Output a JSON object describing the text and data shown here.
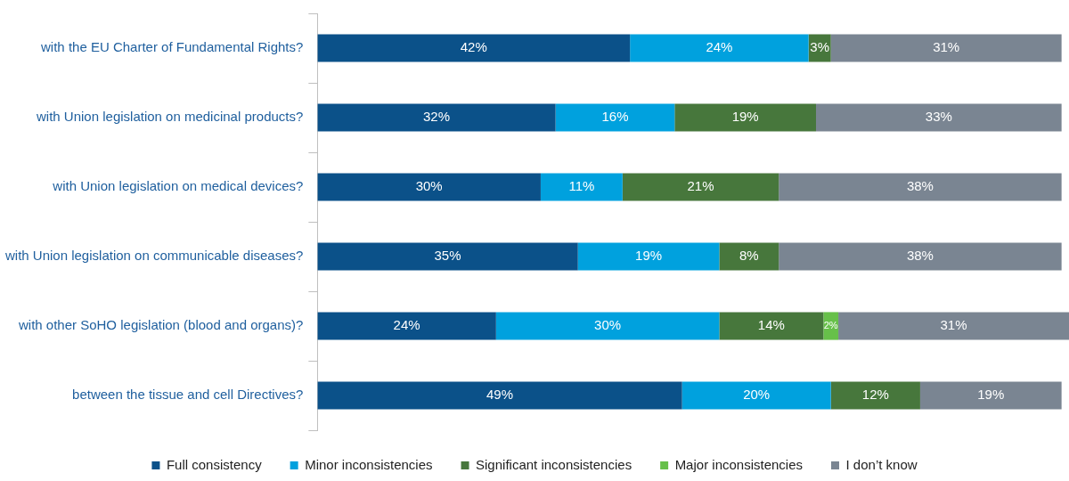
{
  "chart_data": {
    "type": "bar",
    "orientation": "horizontal",
    "stacked": true,
    "legend": "bottom",
    "categories": [
      "with the EU Charter of Fundamental Rights?",
      "with Union legislation on medicinal products?",
      "with Union legislation on medical devices?",
      "with Union legislation on communicable diseases?",
      "with other SoHO legislation (blood and organs)?",
      "between the tissue and cell Directives?"
    ],
    "series": [
      {
        "name": "Full consistency",
        "color": "#0b5189",
        "values": [
          42,
          32,
          30,
          35,
          24,
          49
        ],
        "value_labels": [
          "42%",
          "32%",
          "30%",
          "35%",
          "24%",
          "49%"
        ]
      },
      {
        "name": "Minor inconsistencies",
        "color": "#00a1de",
        "values": [
          24,
          16,
          11,
          19,
          30,
          20
        ],
        "value_labels": [
          "24%",
          "16%",
          "11%",
          "19%",
          "30%",
          "20%"
        ]
      },
      {
        "name": "Significant inconsistencies",
        "color": "#47773c",
        "values": [
          3,
          19,
          21,
          8,
          14,
          12
        ],
        "value_labels": [
          "3%",
          "19%",
          "21%",
          "8%",
          "14%",
          "12%"
        ]
      },
      {
        "name": "Major inconsistencies",
        "color": "#67c04a",
        "values": [
          null,
          null,
          null,
          null,
          2,
          null
        ],
        "value_labels": [
          null,
          null,
          null,
          null,
          "2%",
          null
        ]
      },
      {
        "name": "I don’t know",
        "color": "#7a8592",
        "values": [
          31,
          33,
          38,
          38,
          31,
          19
        ],
        "value_labels": [
          "31%",
          "33%",
          "38%",
          "38%",
          "31%",
          "19%"
        ]
      }
    ]
  }
}
